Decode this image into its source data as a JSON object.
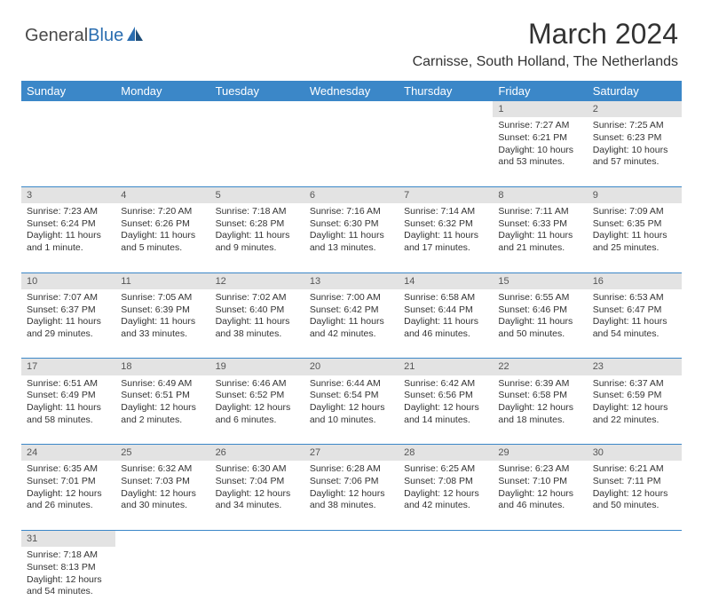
{
  "logo": {
    "general": "General",
    "blue": "Blue"
  },
  "title": "March 2024",
  "location": "Carnisse, South Holland, The Netherlands",
  "colors": {
    "header_bg": "#3b87c8",
    "header_text": "#ffffff",
    "daynum_bg": "#e3e3e3",
    "cell_border": "#3b87c8",
    "body_text": "#333333",
    "logo_blue": "#2a6db0"
  },
  "weekdays": [
    "Sunday",
    "Monday",
    "Tuesday",
    "Wednesday",
    "Thursday",
    "Friday",
    "Saturday"
  ],
  "weeks": [
    [
      null,
      null,
      null,
      null,
      null,
      {
        "n": "1",
        "sr": "Sunrise: 7:27 AM",
        "ss": "Sunset: 6:21 PM",
        "dl": "Daylight: 10 hours and 53 minutes."
      },
      {
        "n": "2",
        "sr": "Sunrise: 7:25 AM",
        "ss": "Sunset: 6:23 PM",
        "dl": "Daylight: 10 hours and 57 minutes."
      }
    ],
    [
      {
        "n": "3",
        "sr": "Sunrise: 7:23 AM",
        "ss": "Sunset: 6:24 PM",
        "dl": "Daylight: 11 hours and 1 minute."
      },
      {
        "n": "4",
        "sr": "Sunrise: 7:20 AM",
        "ss": "Sunset: 6:26 PM",
        "dl": "Daylight: 11 hours and 5 minutes."
      },
      {
        "n": "5",
        "sr": "Sunrise: 7:18 AM",
        "ss": "Sunset: 6:28 PM",
        "dl": "Daylight: 11 hours and 9 minutes."
      },
      {
        "n": "6",
        "sr": "Sunrise: 7:16 AM",
        "ss": "Sunset: 6:30 PM",
        "dl": "Daylight: 11 hours and 13 minutes."
      },
      {
        "n": "7",
        "sr": "Sunrise: 7:14 AM",
        "ss": "Sunset: 6:32 PM",
        "dl": "Daylight: 11 hours and 17 minutes."
      },
      {
        "n": "8",
        "sr": "Sunrise: 7:11 AM",
        "ss": "Sunset: 6:33 PM",
        "dl": "Daylight: 11 hours and 21 minutes."
      },
      {
        "n": "9",
        "sr": "Sunrise: 7:09 AM",
        "ss": "Sunset: 6:35 PM",
        "dl": "Daylight: 11 hours and 25 minutes."
      }
    ],
    [
      {
        "n": "10",
        "sr": "Sunrise: 7:07 AM",
        "ss": "Sunset: 6:37 PM",
        "dl": "Daylight: 11 hours and 29 minutes."
      },
      {
        "n": "11",
        "sr": "Sunrise: 7:05 AM",
        "ss": "Sunset: 6:39 PM",
        "dl": "Daylight: 11 hours and 33 minutes."
      },
      {
        "n": "12",
        "sr": "Sunrise: 7:02 AM",
        "ss": "Sunset: 6:40 PM",
        "dl": "Daylight: 11 hours and 38 minutes."
      },
      {
        "n": "13",
        "sr": "Sunrise: 7:00 AM",
        "ss": "Sunset: 6:42 PM",
        "dl": "Daylight: 11 hours and 42 minutes."
      },
      {
        "n": "14",
        "sr": "Sunrise: 6:58 AM",
        "ss": "Sunset: 6:44 PM",
        "dl": "Daylight: 11 hours and 46 minutes."
      },
      {
        "n": "15",
        "sr": "Sunrise: 6:55 AM",
        "ss": "Sunset: 6:46 PM",
        "dl": "Daylight: 11 hours and 50 minutes."
      },
      {
        "n": "16",
        "sr": "Sunrise: 6:53 AM",
        "ss": "Sunset: 6:47 PM",
        "dl": "Daylight: 11 hours and 54 minutes."
      }
    ],
    [
      {
        "n": "17",
        "sr": "Sunrise: 6:51 AM",
        "ss": "Sunset: 6:49 PM",
        "dl": "Daylight: 11 hours and 58 minutes."
      },
      {
        "n": "18",
        "sr": "Sunrise: 6:49 AM",
        "ss": "Sunset: 6:51 PM",
        "dl": "Daylight: 12 hours and 2 minutes."
      },
      {
        "n": "19",
        "sr": "Sunrise: 6:46 AM",
        "ss": "Sunset: 6:52 PM",
        "dl": "Daylight: 12 hours and 6 minutes."
      },
      {
        "n": "20",
        "sr": "Sunrise: 6:44 AM",
        "ss": "Sunset: 6:54 PM",
        "dl": "Daylight: 12 hours and 10 minutes."
      },
      {
        "n": "21",
        "sr": "Sunrise: 6:42 AM",
        "ss": "Sunset: 6:56 PM",
        "dl": "Daylight: 12 hours and 14 minutes."
      },
      {
        "n": "22",
        "sr": "Sunrise: 6:39 AM",
        "ss": "Sunset: 6:58 PM",
        "dl": "Daylight: 12 hours and 18 minutes."
      },
      {
        "n": "23",
        "sr": "Sunrise: 6:37 AM",
        "ss": "Sunset: 6:59 PM",
        "dl": "Daylight: 12 hours and 22 minutes."
      }
    ],
    [
      {
        "n": "24",
        "sr": "Sunrise: 6:35 AM",
        "ss": "Sunset: 7:01 PM",
        "dl": "Daylight: 12 hours and 26 minutes."
      },
      {
        "n": "25",
        "sr": "Sunrise: 6:32 AM",
        "ss": "Sunset: 7:03 PM",
        "dl": "Daylight: 12 hours and 30 minutes."
      },
      {
        "n": "26",
        "sr": "Sunrise: 6:30 AM",
        "ss": "Sunset: 7:04 PM",
        "dl": "Daylight: 12 hours and 34 minutes."
      },
      {
        "n": "27",
        "sr": "Sunrise: 6:28 AM",
        "ss": "Sunset: 7:06 PM",
        "dl": "Daylight: 12 hours and 38 minutes."
      },
      {
        "n": "28",
        "sr": "Sunrise: 6:25 AM",
        "ss": "Sunset: 7:08 PM",
        "dl": "Daylight: 12 hours and 42 minutes."
      },
      {
        "n": "29",
        "sr": "Sunrise: 6:23 AM",
        "ss": "Sunset: 7:10 PM",
        "dl": "Daylight: 12 hours and 46 minutes."
      },
      {
        "n": "30",
        "sr": "Sunrise: 6:21 AM",
        "ss": "Sunset: 7:11 PM",
        "dl": "Daylight: 12 hours and 50 minutes."
      }
    ],
    [
      {
        "n": "31",
        "sr": "Sunrise: 7:18 AM",
        "ss": "Sunset: 8:13 PM",
        "dl": "Daylight: 12 hours and 54 minutes."
      },
      null,
      null,
      null,
      null,
      null,
      null
    ]
  ]
}
